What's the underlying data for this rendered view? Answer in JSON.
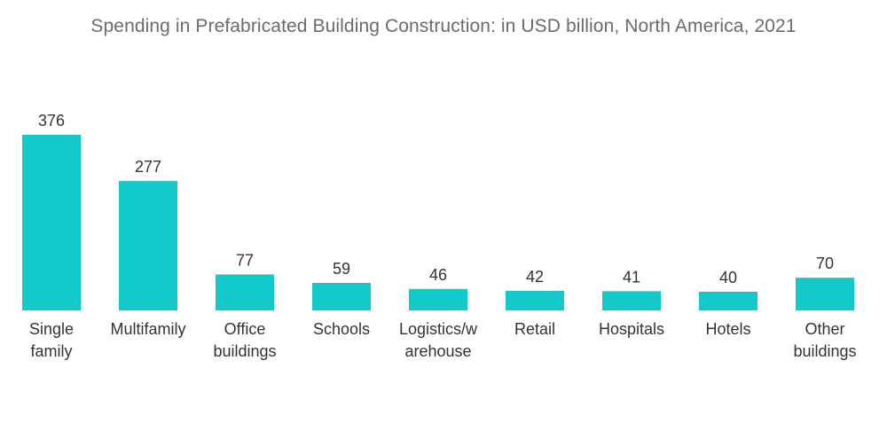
{
  "chart_data": {
    "type": "bar",
    "title": "Spending in Prefabricated Building Construction: in USD billion, North America, 2021",
    "categories": [
      [
        "Single",
        "family"
      ],
      [
        "Multifamily"
      ],
      [
        "Office",
        "buildings"
      ],
      [
        "Schools"
      ],
      [
        "Logistics/w",
        "arehouse"
      ],
      [
        "Retail"
      ],
      [
        "Hospitals"
      ],
      [
        "Hotels"
      ],
      [
        "Other",
        "buildings"
      ]
    ],
    "values": [
      376,
      277,
      77,
      59,
      46,
      42,
      41,
      40,
      70
    ],
    "xlabel": "",
    "ylabel": "",
    "ylim": [
      0,
      376
    ],
    "grid": false,
    "legend": "none",
    "bar_color": "#14C9C9"
  }
}
